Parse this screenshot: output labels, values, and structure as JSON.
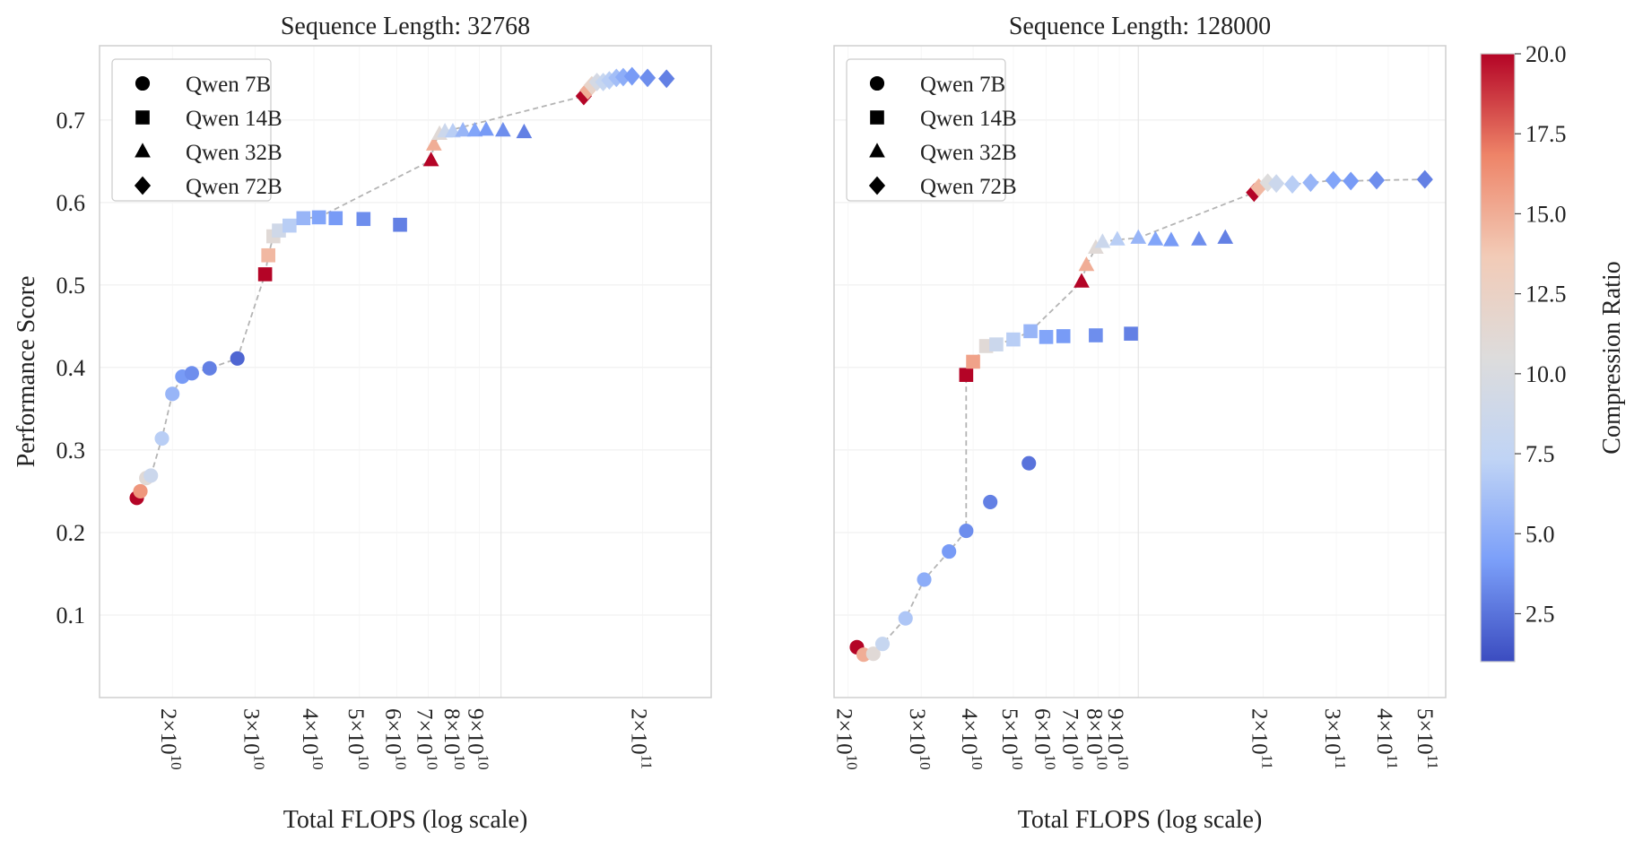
{
  "legend_entries": [
    {
      "name": "Qwen 7B",
      "marker": "circle"
    },
    {
      "name": "Qwen 14B",
      "marker": "square"
    },
    {
      "name": "Qwen 32B",
      "marker": "triangle"
    },
    {
      "name": "Qwen 72B",
      "marker": "diamond"
    }
  ],
  "colorbar": {
    "label": "Compression Ratio",
    "range": [
      1.0,
      20.0
    ],
    "ticks": [
      2.5,
      5.0,
      7.5,
      10.0,
      12.5,
      15.0,
      17.5,
      20.0
    ],
    "tick_labels": [
      "2.5",
      "5.0",
      "7.5",
      "10.0",
      "12.5",
      "15.0",
      "17.5",
      "20.0"
    ],
    "colormap": "coolwarm",
    "stops": [
      "#3b4cc0",
      "#7b9ff9",
      "#c0d4f5",
      "#dddcdc",
      "#f2cbb7",
      "#ee8468",
      "#b40426"
    ]
  },
  "chart_data": [
    {
      "type": "scatter",
      "title": "Sequence Length: 32768",
      "xlabel": "Total FLOPS (log scale)",
      "ylabel": "Performance Score",
      "x_scale": "log",
      "xlim": [
        14000000000.0,
        280000000000.0
      ],
      "ylim": [
        0.0,
        0.79
      ],
      "grid": true,
      "legend_placement": "top-left",
      "y_ticks": [
        0.1,
        0.2,
        0.3,
        0.4,
        0.5,
        0.6,
        0.7
      ],
      "y_tick_labels": [
        "0.1",
        "0.2",
        "0.3",
        "0.4",
        "0.5",
        "0.6",
        "0.7"
      ],
      "x_ticks": [
        {
          "value": 20000000000.0,
          "mantissa": "2",
          "exp": "10"
        },
        {
          "value": 30000000000.0,
          "mantissa": "3",
          "exp": "10"
        },
        {
          "value": 40000000000.0,
          "mantissa": "4",
          "exp": "10"
        },
        {
          "value": 50000000000.0,
          "mantissa": "5",
          "exp": "10"
        },
        {
          "value": 60000000000.0,
          "mantissa": "6",
          "exp": "10"
        },
        {
          "value": 70000000000.0,
          "mantissa": "7",
          "exp": "10"
        },
        {
          "value": 80000000000.0,
          "mantissa": "8",
          "exp": "10"
        },
        {
          "value": 90000000000.0,
          "mantissa": "9",
          "exp": "10"
        },
        {
          "value": 200000000000.0,
          "mantissa": "2",
          "exp": "11"
        }
      ],
      "major_grid_x": [
        100000000000.0
      ],
      "frontier": [
        [
          16800000000.0,
          0.242
        ],
        [
          17100000000.0,
          0.25
        ],
        [
          17600000000.0,
          0.266
        ],
        [
          18000000000.0,
          0.269
        ],
        [
          19000000000.0,
          0.314
        ],
        [
          20000000000.0,
          0.368
        ],
        [
          21000000000.0,
          0.389
        ],
        [
          22000000000.0,
          0.393
        ],
        [
          24000000000.0,
          0.399
        ],
        [
          27500000000.0,
          0.411
        ],
        [
          31500000000.0,
          0.513
        ],
        [
          32000000000.0,
          0.536
        ],
        [
          32800000000.0,
          0.559
        ],
        [
          33700000000.0,
          0.566
        ],
        [
          35500000000.0,
          0.572
        ],
        [
          38000000000.0,
          0.581
        ],
        [
          41000000000.0,
          0.582
        ],
        [
          71000000000.0,
          0.651
        ],
        [
          72000000000.0,
          0.67
        ],
        [
          74000000000.0,
          0.683
        ],
        [
          76000000000.0,
          0.686
        ],
        [
          150000000000.0,
          0.729
        ],
        [
          153000000000.0,
          0.736
        ],
        [
          156000000000.0,
          0.742
        ],
        [
          160000000000.0,
          0.746
        ],
        [
          165000000000.0,
          0.746
        ],
        [
          170000000000.0,
          0.748
        ],
        [
          176000000000.0,
          0.751
        ],
        [
          182000000000.0,
          0.752
        ],
        [
          190000000000.0,
          0.753
        ]
      ],
      "series": [
        {
          "name": "Qwen 7B",
          "marker": "circle",
          "points": [
            {
              "x": 16800000000.0,
              "y": 0.242,
              "c": 20.0
            },
            {
              "x": 17100000000.0,
              "y": 0.25,
              "c": 16.0
            },
            {
              "x": 17600000000.0,
              "y": 0.266,
              "c": 11.0
            },
            {
              "x": 18000000000.0,
              "y": 0.269,
              "c": 8.5
            },
            {
              "x": 19000000000.0,
              "y": 0.314,
              "c": 7.0
            },
            {
              "x": 20000000000.0,
              "y": 0.368,
              "c": 5.5
            },
            {
              "x": 21000000000.0,
              "y": 0.389,
              "c": 4.0
            },
            {
              "x": 22000000000.0,
              "y": 0.393,
              "c": 3.5
            },
            {
              "x": 24000000000.0,
              "y": 0.399,
              "c": 3.0
            },
            {
              "x": 27500000000.0,
              "y": 0.411,
              "c": 2.0
            }
          ]
        },
        {
          "name": "Qwen 14B",
          "marker": "square",
          "points": [
            {
              "x": 31500000000.0,
              "y": 0.513,
              "c": 20.0
            },
            {
              "x": 32000000000.0,
              "y": 0.536,
              "c": 14.5
            },
            {
              "x": 32800000000.0,
              "y": 0.559,
              "c": 11.0
            },
            {
              "x": 33700000000.0,
              "y": 0.566,
              "c": 9.0
            },
            {
              "x": 35500000000.0,
              "y": 0.572,
              "c": 7.0
            },
            {
              "x": 38000000000.0,
              "y": 0.581,
              "c": 5.5
            },
            {
              "x": 41000000000.0,
              "y": 0.582,
              "c": 4.5
            },
            {
              "x": 44500000000.0,
              "y": 0.581,
              "c": 4.0
            },
            {
              "x": 51000000000.0,
              "y": 0.58,
              "c": 3.5
            },
            {
              "x": 61000000000.0,
              "y": 0.573,
              "c": 3.0
            }
          ]
        },
        {
          "name": "Qwen 32B",
          "marker": "triangle",
          "points": [
            {
              "x": 71000000000.0,
              "y": 0.651,
              "c": 20.0
            },
            {
              "x": 72000000000.0,
              "y": 0.67,
              "c": 15.0
            },
            {
              "x": 74000000000.0,
              "y": 0.683,
              "c": 11.0
            },
            {
              "x": 76000000000.0,
              "y": 0.686,
              "c": 8.5
            },
            {
              "x": 79000000000.0,
              "y": 0.686,
              "c": 7.0
            },
            {
              "x": 83000000000.0,
              "y": 0.687,
              "c": 5.5
            },
            {
              "x": 88000000000.0,
              "y": 0.687,
              "c": 4.5
            },
            {
              "x": 93000000000.0,
              "y": 0.688,
              "c": 4.0
            },
            {
              "x": 101000000000.0,
              "y": 0.687,
              "c": 3.5
            },
            {
              "x": 112000000000.0,
              "y": 0.685,
              "c": 3.0
            }
          ]
        },
        {
          "name": "Qwen 72B",
          "marker": "diamond",
          "points": [
            {
              "x": 150000000000.0,
              "y": 0.729,
              "c": 20.0
            },
            {
              "x": 153000000000.0,
              "y": 0.736,
              "c": 15.0
            },
            {
              "x": 156000000000.0,
              "y": 0.742,
              "c": 12.0
            },
            {
              "x": 160000000000.0,
              "y": 0.746,
              "c": 9.5
            },
            {
              "x": 165000000000.0,
              "y": 0.746,
              "c": 8.0
            },
            {
              "x": 170000000000.0,
              "y": 0.748,
              "c": 7.0
            },
            {
              "x": 176000000000.0,
              "y": 0.751,
              "c": 6.0
            },
            {
              "x": 182000000000.0,
              "y": 0.752,
              "c": 5.0
            },
            {
              "x": 190000000000.0,
              "y": 0.753,
              "c": 4.0
            },
            {
              "x": 205000000000.0,
              "y": 0.751,
              "c": 3.5
            },
            {
              "x": 225000000000.0,
              "y": 0.75,
              "c": 3.0
            }
          ]
        }
      ]
    },
    {
      "type": "scatter",
      "title": "Sequence Length: 128000",
      "xlabel": "Total FLOPS (log scale)",
      "ylabel": "",
      "x_scale": "log",
      "xlim": [
        18500000000.0,
        550000000000.0
      ],
      "ylim": [
        0.0,
        0.79
      ],
      "grid": true,
      "legend_placement": "top-left",
      "y_ticks": [
        0.1,
        0.2,
        0.3,
        0.4,
        0.5,
        0.6,
        0.7
      ],
      "y_tick_labels": [],
      "x_ticks": [
        {
          "value": 20000000000.0,
          "mantissa": "2",
          "exp": "10"
        },
        {
          "value": 30000000000.0,
          "mantissa": "3",
          "exp": "10"
        },
        {
          "value": 40000000000.0,
          "mantissa": "4",
          "exp": "10"
        },
        {
          "value": 50000000000.0,
          "mantissa": "5",
          "exp": "10"
        },
        {
          "value": 60000000000.0,
          "mantissa": "6",
          "exp": "10"
        },
        {
          "value": 70000000000.0,
          "mantissa": "7",
          "exp": "10"
        },
        {
          "value": 80000000000.0,
          "mantissa": "8",
          "exp": "10"
        },
        {
          "value": 90000000000.0,
          "mantissa": "9",
          "exp": "10"
        },
        {
          "value": 200000000000.0,
          "mantissa": "2",
          "exp": "11"
        },
        {
          "value": 300000000000.0,
          "mantissa": "3",
          "exp": "11"
        },
        {
          "value": 400000000000.0,
          "mantissa": "4",
          "exp": "11"
        },
        {
          "value": 500000000000.0,
          "mantissa": "5",
          "exp": "11"
        }
      ],
      "major_grid_x": [
        100000000000.0
      ],
      "frontier": [
        [
          21000000000.0,
          0.061
        ],
        [
          21800000000.0,
          0.052
        ],
        [
          23000000000.0,
          0.053
        ],
        [
          24200000000.0,
          0.065
        ],
        [
          27500000000.0,
          0.096
        ],
        [
          30500000000.0,
          0.143
        ],
        [
          35000000000.0,
          0.177
        ],
        [
          38500000000.0,
          0.202
        ],
        [
          38500000000.0,
          0.391
        ],
        [
          40000000000.0,
          0.407
        ],
        [
          43000000000.0,
          0.426
        ],
        [
          45500000000.0,
          0.428
        ],
        [
          50000000000.0,
          0.434
        ],
        [
          55000000000.0,
          0.444
        ],
        [
          73000000000.0,
          0.504
        ],
        [
          75000000000.0,
          0.524
        ],
        [
          79000000000.0,
          0.545
        ],
        [
          82000000000.0,
          0.552
        ],
        [
          89000000000.0,
          0.555
        ],
        [
          100000000000.0,
          0.557
        ],
        [
          190000000000.0,
          0.612
        ],
        [
          195000000000.0,
          0.618
        ],
        [
          205000000000.0,
          0.624
        ],
        [
          215000000000.0,
          0.623
        ],
        [
          235000000000.0,
          0.622
        ],
        [
          260000000000.0,
          0.624
        ],
        [
          295000000000.0,
          0.627
        ],
        [
          325000000000.0,
          0.626
        ],
        [
          375000000000.0,
          0.627
        ],
        [
          490000000000.0,
          0.628
        ]
      ],
      "series": [
        {
          "name": "Qwen 7B",
          "marker": "circle",
          "points": [
            {
              "x": 21000000000.0,
              "y": 0.061,
              "c": 20.0
            },
            {
              "x": 21800000000.0,
              "y": 0.052,
              "c": 15.0
            },
            {
              "x": 23000000000.0,
              "y": 0.053,
              "c": 11.0
            },
            {
              "x": 24200000000.0,
              "y": 0.065,
              "c": 8.0
            },
            {
              "x": 27500000000.0,
              "y": 0.096,
              "c": 6.5
            },
            {
              "x": 30500000000.0,
              "y": 0.143,
              "c": 5.0
            },
            {
              "x": 35000000000.0,
              "y": 0.177,
              "c": 4.0
            },
            {
              "x": 38500000000.0,
              "y": 0.202,
              "c": 3.5
            },
            {
              "x": 44000000000.0,
              "y": 0.237,
              "c": 3.0
            },
            {
              "x": 54500000000.0,
              "y": 0.284,
              "c": 2.5
            }
          ]
        },
        {
          "name": "Qwen 14B",
          "marker": "square",
          "points": [
            {
              "x": 38500000000.0,
              "y": 0.391,
              "c": 20.0
            },
            {
              "x": 40000000000.0,
              "y": 0.407,
              "c": 15.5
            },
            {
              "x": 43000000000.0,
              "y": 0.426,
              "c": 11.0
            },
            {
              "x": 45500000000.0,
              "y": 0.428,
              "c": 8.5
            },
            {
              "x": 50000000000.0,
              "y": 0.434,
              "c": 7.0
            },
            {
              "x": 55000000000.0,
              "y": 0.444,
              "c": 5.5
            },
            {
              "x": 60000000000.0,
              "y": 0.437,
              "c": 4.5
            },
            {
              "x": 66000000000.0,
              "y": 0.438,
              "c": 4.0
            },
            {
              "x": 79000000000.0,
              "y": 0.439,
              "c": 3.5
            },
            {
              "x": 96000000000.0,
              "y": 0.441,
              "c": 3.0
            }
          ]
        },
        {
          "name": "Qwen 32B",
          "marker": "triangle",
          "points": [
            {
              "x": 73000000000.0,
              "y": 0.504,
              "c": 20.0
            },
            {
              "x": 75000000000.0,
              "y": 0.524,
              "c": 15.0
            },
            {
              "x": 79000000000.0,
              "y": 0.545,
              "c": 11.0
            },
            {
              "x": 82000000000.0,
              "y": 0.552,
              "c": 8.5
            },
            {
              "x": 89000000000.0,
              "y": 0.555,
              "c": 7.0
            },
            {
              "x": 100000000000.0,
              "y": 0.557,
              "c": 5.5
            },
            {
              "x": 110000000000.0,
              "y": 0.555,
              "c": 4.5
            },
            {
              "x": 120000000000.0,
              "y": 0.554,
              "c": 4.0
            },
            {
              "x": 140000000000.0,
              "y": 0.555,
              "c": 3.5
            },
            {
              "x": 162000000000.0,
              "y": 0.557,
              "c": 3.0
            }
          ]
        },
        {
          "name": "Qwen 72B",
          "marker": "diamond",
          "points": [
            {
              "x": 190000000000.0,
              "y": 0.612,
              "c": 20.0
            },
            {
              "x": 195000000000.0,
              "y": 0.618,
              "c": 14.5
            },
            {
              "x": 205000000000.0,
              "y": 0.624,
              "c": 10.5
            },
            {
              "x": 215000000000.0,
              "y": 0.623,
              "c": 8.5
            },
            {
              "x": 235000000000.0,
              "y": 0.622,
              "c": 7.0
            },
            {
              "x": 260000000000.0,
              "y": 0.624,
              "c": 5.5
            },
            {
              "x": 295000000000.0,
              "y": 0.627,
              "c": 4.5
            },
            {
              "x": 325000000000.0,
              "y": 0.626,
              "c": 4.0
            },
            {
              "x": 375000000000.0,
              "y": 0.627,
              "c": 3.5
            },
            {
              "x": 490000000000.0,
              "y": 0.628,
              "c": 3.0
            }
          ]
        }
      ]
    }
  ]
}
